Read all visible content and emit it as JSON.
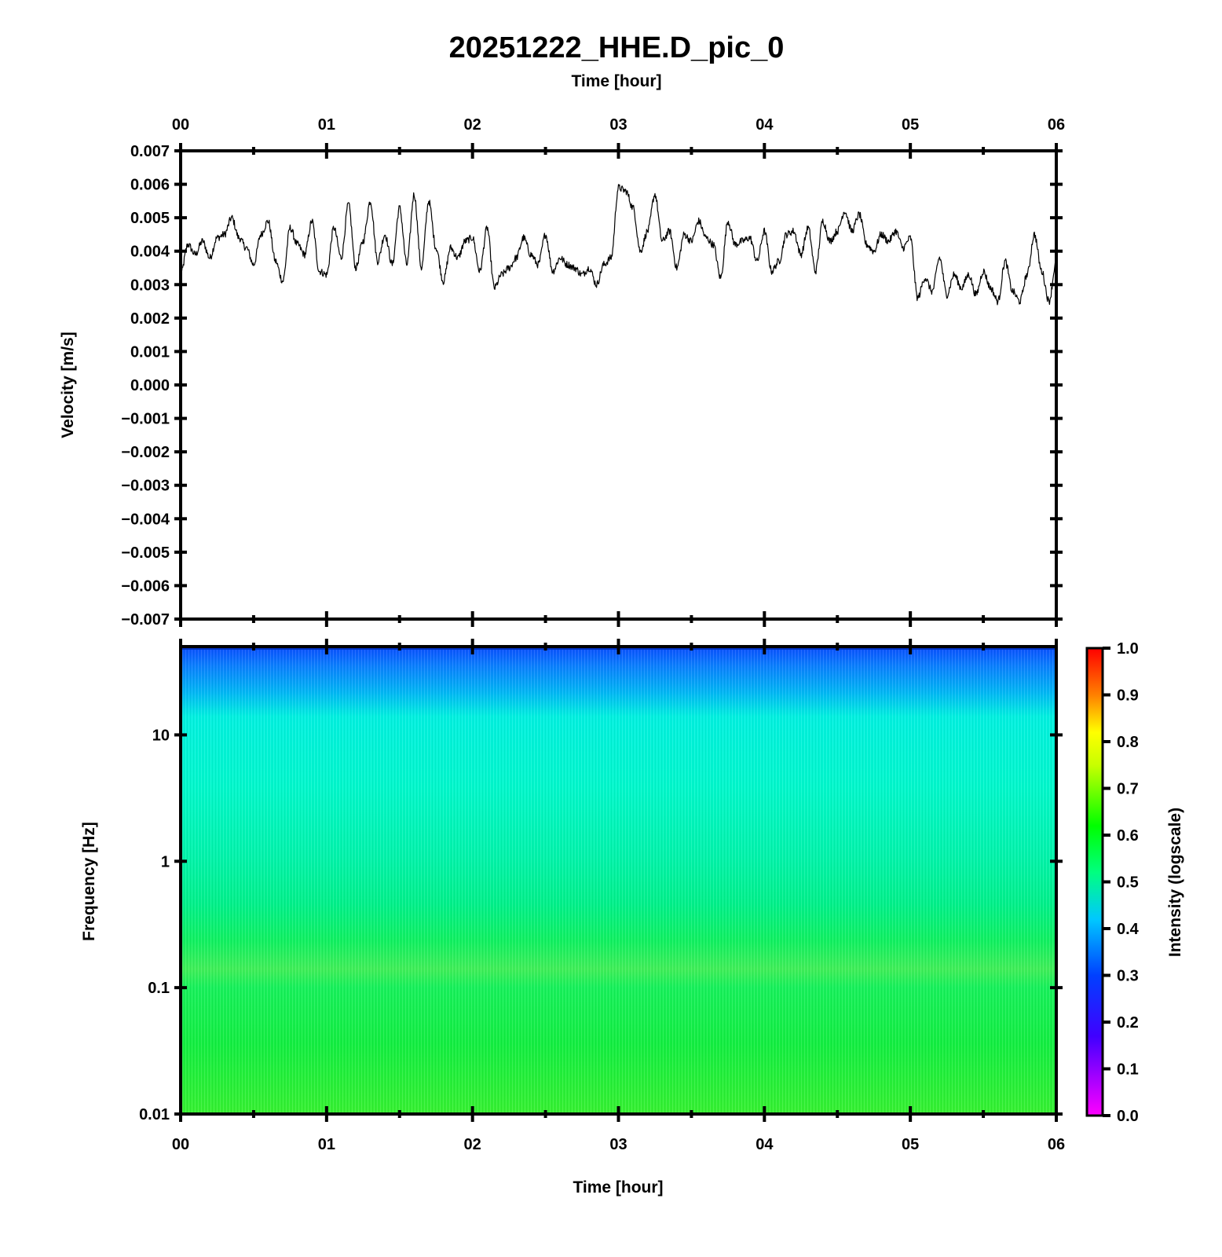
{
  "chart_data": [
    {
      "type": "line",
      "title": "20251222_HHE.D_pic_0",
      "xlabel": "Time [hour]",
      "ylabel": "Velocity [m/s]",
      "xlim": [
        0,
        6
      ],
      "ylim": [
        -0.007,
        0.007
      ],
      "x_ticks": [
        "00",
        "01",
        "02",
        "03",
        "04",
        "05",
        "06"
      ],
      "y_ticks": [
        "0.007",
        "0.006",
        "0.005",
        "0.004",
        "0.003",
        "0.002",
        "0.001",
        "0.000",
        "−0.001",
        "−0.002",
        "−0.003",
        "−0.004",
        "−0.005",
        "−0.006",
        "−0.007"
      ],
      "grid": false,
      "line_color": "#000000",
      "series": [
        {
          "x": [
            0.0,
            0.05,
            0.1,
            0.15,
            0.2,
            0.25,
            0.3,
            0.35,
            0.4,
            0.45,
            0.5,
            0.55,
            0.6,
            0.65,
            0.7,
            0.75,
            0.8,
            0.85,
            0.9,
            0.95,
            1.0,
            1.05,
            1.1,
            1.15,
            1.2,
            1.25,
            1.3,
            1.35,
            1.4,
            1.45,
            1.5,
            1.55,
            1.6,
            1.65,
            1.7,
            1.75,
            1.8,
            1.85,
            1.9,
            1.95,
            2.0,
            2.05,
            2.1,
            2.15,
            2.2,
            2.25,
            2.3,
            2.35,
            2.4,
            2.45,
            2.5,
            2.55,
            2.6,
            2.65,
            2.7,
            2.75,
            2.8,
            2.85,
            2.9,
            2.95,
            3.0,
            3.05,
            3.1,
            3.15,
            3.2,
            3.25,
            3.3,
            3.35,
            3.4,
            3.45,
            3.5,
            3.55,
            3.6,
            3.65,
            3.7,
            3.75,
            3.8,
            3.85,
            3.9,
            3.95,
            4.0,
            4.05,
            4.1,
            4.15,
            4.2,
            4.25,
            4.3,
            4.35,
            4.4,
            4.45,
            4.5,
            4.55,
            4.6,
            4.65,
            4.7,
            4.75,
            4.8,
            4.85,
            4.9,
            4.95,
            5.0,
            5.05,
            5.1,
            5.15,
            5.2,
            5.25,
            5.3,
            5.35,
            5.4,
            5.45,
            5.5,
            5.55,
            5.6,
            5.65,
            5.7,
            5.75,
            5.8,
            5.85,
            5.9,
            5.95,
            6.0
          ],
          "values": [
            0.0033,
            0.0042,
            0.0039,
            0.0043,
            0.0038,
            0.0044,
            0.0045,
            0.005,
            0.0044,
            0.0041,
            0.0036,
            0.0045,
            0.0049,
            0.0037,
            0.0031,
            0.0047,
            0.0042,
            0.0039,
            0.0049,
            0.0034,
            0.0033,
            0.0047,
            0.0038,
            0.0054,
            0.0035,
            0.0043,
            0.0055,
            0.0037,
            0.0045,
            0.0036,
            0.0053,
            0.0036,
            0.0057,
            0.0035,
            0.0055,
            0.0041,
            0.0031,
            0.0041,
            0.0038,
            0.0043,
            0.0044,
            0.0034,
            0.0047,
            0.0029,
            0.0033,
            0.0035,
            0.0038,
            0.0044,
            0.0039,
            0.0036,
            0.0045,
            0.0034,
            0.0038,
            0.0036,
            0.0035,
            0.0033,
            0.0035,
            0.003,
            0.0036,
            0.0038,
            0.0059,
            0.0058,
            0.0053,
            0.004,
            0.0046,
            0.0057,
            0.0043,
            0.0046,
            0.0035,
            0.0045,
            0.0043,
            0.0049,
            0.0044,
            0.0042,
            0.0032,
            0.0049,
            0.0042,
            0.0043,
            0.0044,
            0.0037,
            0.0046,
            0.0034,
            0.0037,
            0.0045,
            0.0046,
            0.0039,
            0.0047,
            0.0034,
            0.0049,
            0.0043,
            0.0046,
            0.0052,
            0.0046,
            0.0051,
            0.0042,
            0.004,
            0.0045,
            0.0043,
            0.0046,
            0.0041,
            0.0044,
            0.0026,
            0.0032,
            0.0028,
            0.0038,
            0.0027,
            0.0033,
            0.0029,
            0.0033,
            0.0027,
            0.0034,
            0.0029,
            0.0025,
            0.0037,
            0.0028,
            0.0025,
            0.0033,
            0.0045,
            0.0034,
            0.0025,
            0.0037
          ]
        }
      ]
    },
    {
      "type": "heatmap",
      "xlabel": "Time [hour]",
      "ylabel": "Frequency [Hz]",
      "xlim": [
        0,
        6
      ],
      "ylim": [
        0.01,
        50
      ],
      "y_scale": "log",
      "x_ticks": [
        "00",
        "01",
        "02",
        "03",
        "04",
        "05",
        "06"
      ],
      "y_ticks": [
        "10",
        "1",
        "0.1",
        "0.01"
      ],
      "colorbar": {
        "label": "Intensity (logscale)",
        "range": [
          0.0,
          1.0
        ],
        "ticks": [
          "1.0",
          "0.9",
          "0.8",
          "0.7",
          "0.6",
          "0.5",
          "0.4",
          "0.3",
          "0.2",
          "0.1",
          "0.0"
        ],
        "colormap": [
          "#ff00ff",
          "#0000ff",
          "#00bfff",
          "#00ff00",
          "#ffff00",
          "#ff8000",
          "#ff0000"
        ]
      },
      "intensity_profile": {
        "frequency_hz": [
          0.01,
          0.03,
          0.1,
          0.2,
          0.5,
          1,
          3,
          10,
          20,
          50
        ],
        "intensity": [
          0.62,
          0.6,
          0.57,
          0.62,
          0.5,
          0.47,
          0.44,
          0.43,
          0.39,
          0.32
        ]
      }
    }
  ]
}
